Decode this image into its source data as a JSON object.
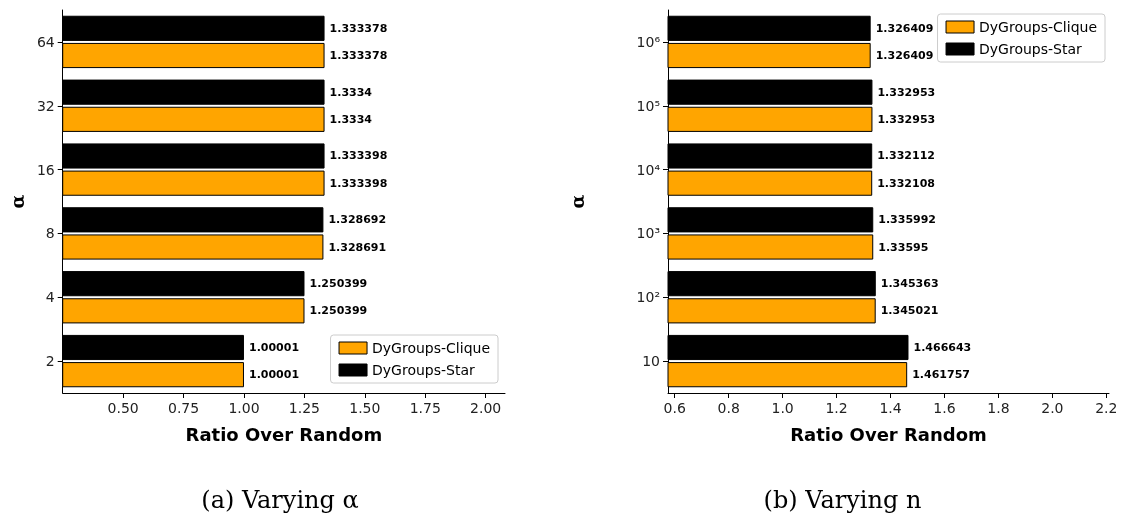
{
  "chart_data": [
    {
      "type": "bar",
      "orientation": "horizontal",
      "title": "(a) Varying α",
      "xlabel": "Ratio Over Random",
      "ylabel": "α",
      "categories": [
        "64",
        "32",
        "16",
        "8",
        "4",
        "2"
      ],
      "series": [
        {
          "name": "DyGroups-Clique",
          "color": "#ffa500",
          "values": [
            1.333378,
            1.3334,
            1.333398,
            1.328691,
            1.250399,
            1.00001
          ]
        },
        {
          "name": "DyGroups-Star",
          "color": "#000000",
          "values": [
            1.333378,
            1.3334,
            1.333398,
            1.328692,
            1.250399,
            1.00001
          ]
        }
      ],
      "xlim": [
        0.25,
        2.08
      ],
      "xticks": [
        {
          "value": 0.5,
          "label": "0.50"
        },
        {
          "value": 0.75,
          "label": "0.75"
        },
        {
          "value": 1,
          "label": "1.00"
        },
        {
          "value": 1.25,
          "label": "1.25"
        },
        {
          "value": 1.5,
          "label": "1.50"
        },
        {
          "value": 1.75,
          "label": "1.75"
        },
        {
          "value": 2,
          "label": "2.00"
        }
      ],
      "data_labels": true,
      "grid": false,
      "legend": "bottom right"
    },
    {
      "type": "bar",
      "orientation": "horizontal",
      "title": "(b) Varying n",
      "xlabel": "Ratio Over Random",
      "ylabel": "α",
      "categories": [
        "10⁶",
        "10⁵",
        "10⁴",
        "10³",
        "10²",
        "10"
      ],
      "series": [
        {
          "name": "DyGroups-Clique",
          "color": "#ffa500",
          "values": [
            1.326409,
            1.332953,
            1.332108,
            1.33595,
            1.345021,
            1.461757
          ]
        },
        {
          "name": "DyGroups-Star",
          "color": "#000000",
          "values": [
            1.326409,
            1.332953,
            1.332112,
            1.335992,
            1.345363,
            1.466643
          ]
        }
      ],
      "xlim": [
        0.575,
        2.21
      ],
      "xticks": [
        0.6,
        0.8,
        {
          "value": 1,
          "label": "1.0"
        },
        1.2,
        1.4,
        1.6,
        1.8,
        {
          "value": 2,
          "label": "2.0"
        },
        2.2
      ],
      "data_labels": true,
      "grid": false,
      "legend": "top right"
    }
  ]
}
